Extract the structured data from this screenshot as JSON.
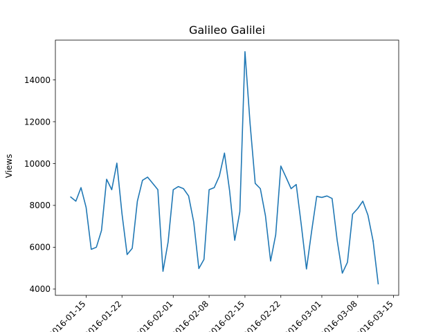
{
  "chart_data": {
    "type": "line",
    "title": "Galileo Galilei",
    "xlabel": "",
    "ylabel": "Views",
    "grid": false,
    "ylim": [
      3700,
      15900
    ],
    "xlim": [
      "2016-01-09",
      "2016-03-16"
    ],
    "x_ticks": [
      "2016-01-15",
      "2016-01-22",
      "2016-02-01",
      "2016-02-08",
      "2016-02-15",
      "2016-02-22",
      "2016-03-01",
      "2016-03-08",
      "2016-03-15"
    ],
    "y_ticks": [
      4000,
      6000,
      8000,
      10000,
      12000,
      14000
    ],
    "series": [
      {
        "color": "#1f77b4",
        "x": [
          "2016-01-12",
          "2016-01-13",
          "2016-01-14",
          "2016-01-15",
          "2016-01-16",
          "2016-01-17",
          "2016-01-18",
          "2016-01-19",
          "2016-01-20",
          "2016-01-21",
          "2016-01-22",
          "2016-01-23",
          "2016-01-24",
          "2016-01-25",
          "2016-01-26",
          "2016-01-27",
          "2016-01-28",
          "2016-01-29",
          "2016-01-30",
          "2016-01-31",
          "2016-02-01",
          "2016-02-02",
          "2016-02-03",
          "2016-02-04",
          "2016-02-05",
          "2016-02-06",
          "2016-02-07",
          "2016-02-08",
          "2016-02-09",
          "2016-02-10",
          "2016-02-11",
          "2016-02-12",
          "2016-02-13",
          "2016-02-14",
          "2016-02-15",
          "2016-02-16",
          "2016-02-17",
          "2016-02-18",
          "2016-02-19",
          "2016-02-20",
          "2016-02-21",
          "2016-02-22",
          "2016-02-23",
          "2016-02-24",
          "2016-02-25",
          "2016-02-26",
          "2016-02-27",
          "2016-02-28",
          "2016-02-29",
          "2016-03-01",
          "2016-03-02",
          "2016-03-03",
          "2016-03-04",
          "2016-03-05",
          "2016-03-06",
          "2016-03-07",
          "2016-03-08",
          "2016-03-09",
          "2016-03-10",
          "2016-03-11"
        ],
        "values": [
          8400,
          8200,
          8850,
          7900,
          5900,
          6000,
          6800,
          9250,
          8750,
          10020,
          7600,
          5650,
          5950,
          8200,
          9200,
          9350,
          9050,
          8750,
          4850,
          6250,
          8750,
          8900,
          8800,
          8450,
          7200,
          4980,
          5420,
          8750,
          8850,
          9400,
          10500,
          8700,
          6330,
          7700,
          15350,
          11900,
          9050,
          8800,
          7500,
          5340,
          6600,
          9880,
          9350,
          8800,
          9000,
          7050,
          4960,
          6750,
          8430,
          8380,
          8450,
          8330,
          6320,
          4760,
          5280,
          7580,
          7850,
          8200,
          7530,
          6300
        ]
      },
      {
        "x": [
          "2016-03-11",
          "2016-03-12"
        ],
        "values": [
          6300,
          4250
        ]
      }
    ]
  }
}
